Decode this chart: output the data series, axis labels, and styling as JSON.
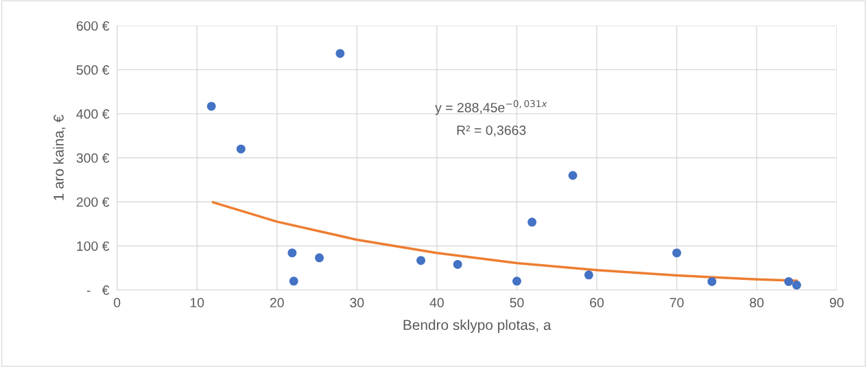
{
  "chart_data": {
    "type": "scatter",
    "xlabel": "Bendro sklypo plotas, a",
    "ylabel": "1 aro kaina, €",
    "x": [
      11.8,
      15.5,
      27.9,
      21.9,
      22.1,
      25.3,
      38.0,
      42.6,
      50.0,
      51.9,
      57.0,
      59.0,
      70.0,
      74.4,
      84.0,
      85.0
    ],
    "series": [
      {
        "color": "#4472c4",
        "marker": "circle",
        "values": [
          417,
          320,
          537,
          84,
          20,
          73,
          67,
          58,
          20,
          154,
          260,
          34,
          84,
          19,
          19,
          11
        ]
      },
      {
        "type": "line",
        "color": "#ed7d31",
        "marker": "none",
        "line_style": "solid",
        "x": [
          12,
          20,
          30,
          40,
          50,
          60,
          70,
          80,
          85
        ],
        "values": [
          199,
          155,
          114,
          84,
          61,
          45,
          33,
          24,
          21
        ]
      }
    ],
    "xlim": [
      0,
      90
    ],
    "xticks": [
      0,
      10,
      20,
      30,
      40,
      50,
      60,
      70,
      80,
      90
    ],
    "ylim": [
      0,
      600
    ],
    "yticks": [
      {
        "value": 0,
        "label": "-   €"
      },
      {
        "value": 100,
        "label": "100 €"
      },
      {
        "value": 200,
        "label": "200 €"
      },
      {
        "value": 300,
        "label": "300 €"
      },
      {
        "value": 400,
        "label": "400 €"
      },
      {
        "value": 500,
        "label": "500 €"
      },
      {
        "value": 600,
        "label": "600 €"
      }
    ],
    "grid": true,
    "legend": false,
    "annotations": [
      "y = 288,45e$^{−0,031x}$",
      "R² = 0,3663"
    ]
  }
}
